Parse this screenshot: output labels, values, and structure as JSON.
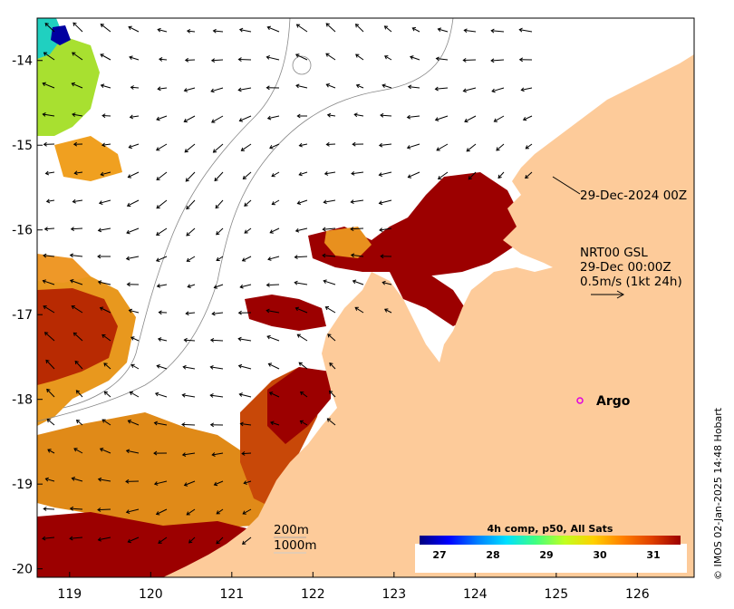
{
  "map": {
    "x_ticks": [
      "119",
      "120",
      "121",
      "122",
      "123",
      "124",
      "125",
      "126"
    ],
    "y_ticks": [
      "-14",
      "-15",
      "-16",
      "-17",
      "-18",
      "-19",
      "-20"
    ],
    "lon_range": [
      118.6,
      126.7
    ],
    "lat_range": [
      -20.1,
      -13.5
    ]
  },
  "annotations": {
    "timestamp_label": "29-Dec-2024 00Z",
    "gsl_title": "NRT00 GSL",
    "gsl_time": "29-Dec 00:00Z",
    "gsl_scale": "0.5m/s (1kt 24h)",
    "argo_label": "Argo",
    "contour_200": "200m",
    "contour_1000": "1000m"
  },
  "colorbar": {
    "title": "4h comp, p50, All Sats",
    "ticks": [
      "27",
      "28",
      "29",
      "30",
      "31"
    ],
    "stops": [
      "#00007f",
      "#0000ff",
      "#0080ff",
      "#00e0ff",
      "#40ff80",
      "#c0ff20",
      "#ffd000",
      "#ff8000",
      "#e04000",
      "#9c0000"
    ]
  },
  "colors": {
    "land": "#fdcb9a",
    "ocean_bg": "#ffffff",
    "sst_hot": "#9c0000",
    "sst_warm": "#d06010",
    "sst_mid": "#e89a20",
    "argo_marker": "#e000e0"
  },
  "credit": "© IMOS 02-Jan-2025 14:48 Hobart"
}
